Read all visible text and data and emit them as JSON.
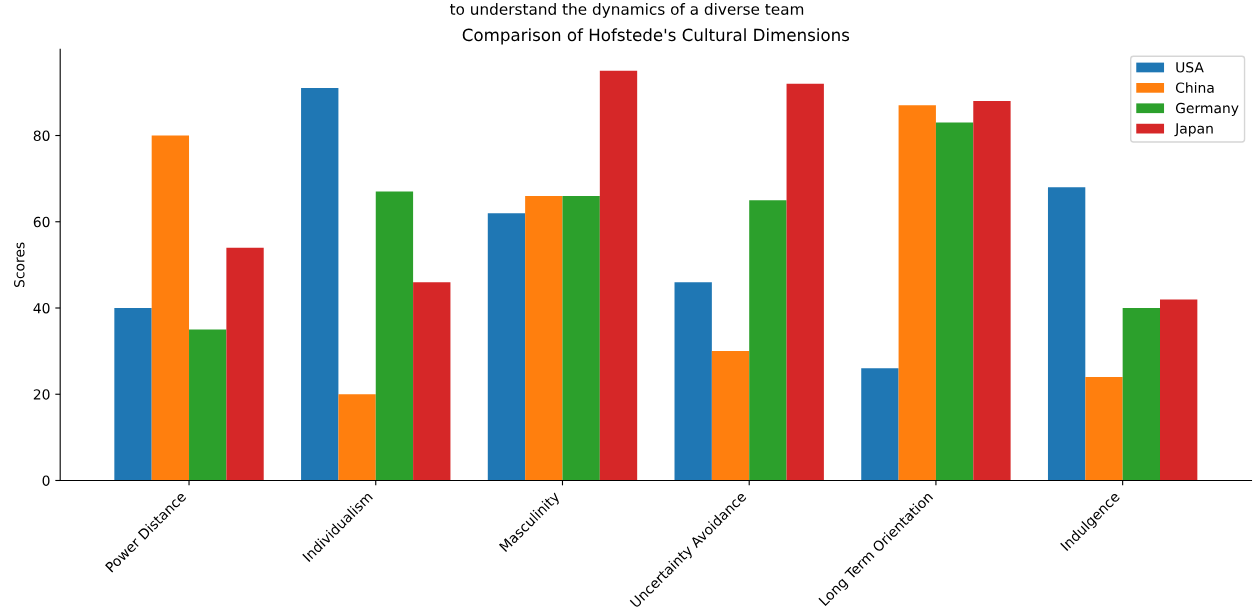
{
  "chart_data": {
    "type": "bar",
    "title": "Comparison of Hofstede's Cultural Dimensions",
    "ylabel": "Scores",
    "annotations": [
      "to understand the dynamics of a diverse team"
    ],
    "categories": [
      "Power Distance",
      "Individualism",
      "Masculinity",
      "Uncertainty Avoidance",
      "Long Term Orientation",
      "Indulgence"
    ],
    "series": [
      {
        "name": "USA",
        "color": "#1f77b4",
        "values": [
          40,
          91,
          62,
          46,
          26,
          68
        ]
      },
      {
        "name": "China",
        "color": "#ff7f0e",
        "values": [
          80,
          20,
          66,
          30,
          87,
          24
        ]
      },
      {
        "name": "Germany",
        "color": "#2ca02c",
        "values": [
          35,
          67,
          66,
          65,
          83,
          40
        ]
      },
      {
        "name": "Japan",
        "color": "#d62728",
        "values": [
          54,
          46,
          95,
          92,
          88,
          42
        ]
      }
    ],
    "ylim": [
      0,
      100
    ],
    "yticks": [
      0,
      20,
      40,
      60,
      80
    ],
    "legend": "top right"
  }
}
